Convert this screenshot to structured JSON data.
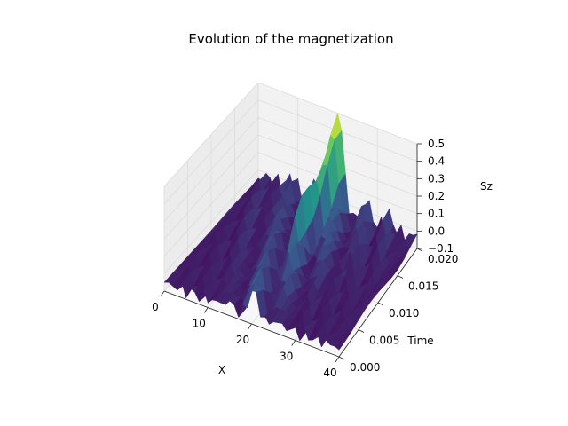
{
  "chart_data": {
    "type": "surface",
    "title": "Evolution of the magnetization",
    "xlabel": "X",
    "ylabel": "Time",
    "zlabel": "Sz",
    "x_ticks": [
      "0",
      "10",
      "20",
      "30",
      "40"
    ],
    "y_ticks": [
      "0.000",
      "0.005",
      "0.010",
      "0.015",
      "0.020"
    ],
    "z_ticks": [
      "−0.1",
      "0.0",
      "0.1",
      "0.2",
      "0.3",
      "0.4",
      "0.5"
    ],
    "xlim": [
      0,
      40
    ],
    "ylim": [
      0,
      0.02
    ],
    "zlim": [
      -0.1,
      0.5
    ],
    "colormap": "viridis",
    "grid": true,
    "surface_summary": {
      "baseline_sz": -0.05,
      "spin_wave_oscillation": [
        -0.1,
        0.1
      ],
      "peak_sz": 0.5,
      "peak_x": 20,
      "peak_time": 0.02
    }
  },
  "colors": {
    "pane_left": "#ececec",
    "pane_back": "#f2f2f2",
    "pane_floor": "#f7f7f7",
    "grid": "#dcdcdc",
    "surface_low": "#440154",
    "surface_high": "#fde725"
  }
}
